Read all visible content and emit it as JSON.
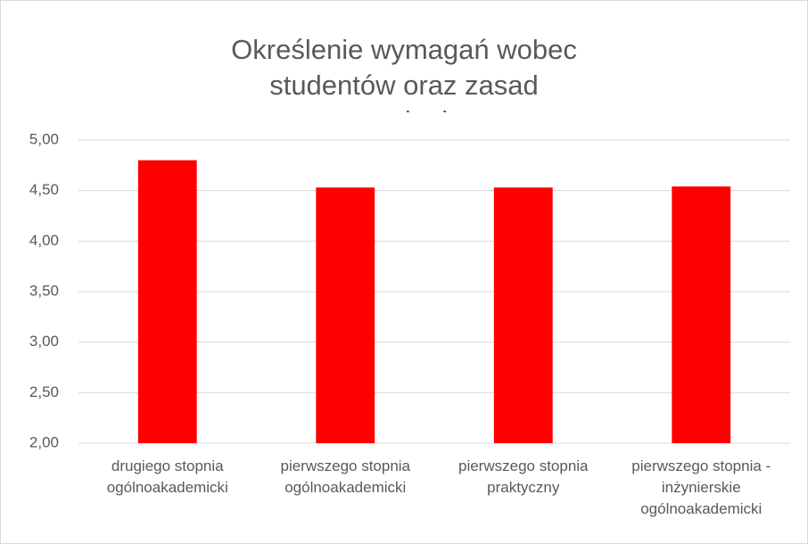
{
  "chart_data": {
    "type": "bar",
    "title": "Określenie wymagań wobec studentów oraz zasad oceniania",
    "categories": [
      "drugiego stopnia ogólnoakademicki",
      "pierwszego stopnia ogólnoakademicki",
      "pierwszego stopnia praktyczny",
      "pierwszego stopnia - inżynierskie ogólnoakademicki"
    ],
    "values": [
      4.8,
      4.53,
      4.53,
      4.54
    ],
    "color": "#ff0000",
    "ylim": [
      2,
      5
    ],
    "yticks": [
      {
        "value": 2,
        "label": "2,00"
      },
      {
        "value": 2.5,
        "label": "2,50"
      },
      {
        "value": 3,
        "label": "3,00"
      },
      {
        "value": 3.5,
        "label": "3,50"
      },
      {
        "value": 4,
        "label": "4,00"
      },
      {
        "value": 4.5,
        "label": "4,50"
      },
      {
        "value": 5,
        "label": "5,00"
      }
    ],
    "grid": true
  }
}
